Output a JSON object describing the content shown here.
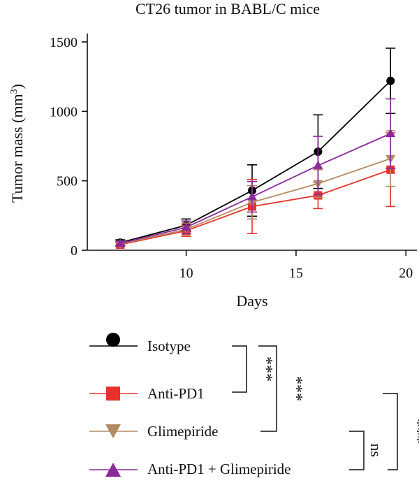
{
  "chart_data": {
    "type": "line",
    "title": "CT26 tumor in BABL/C mice",
    "xlabel": "Days",
    "ylabel": "Tumor mass (mm",
    "ylabel_sup": "3",
    "ylabel_close": ")",
    "xlim": [
      5.5,
      20.5
    ],
    "ylim": [
      0,
      1500
    ],
    "xticks": [
      10,
      15,
      20
    ],
    "yticks": [
      0,
      500,
      1000,
      1500
    ],
    "grid": false,
    "legend_position": "bottom",
    "series": [
      {
        "name": "Isotype",
        "color": "#000000",
        "marker": "circle",
        "x": [
          7,
          10,
          13,
          16,
          19.3
        ],
        "y": [
          55,
          180,
          430,
          710,
          1220
        ],
        "err": [
          20,
          45,
          185,
          265,
          235
        ]
      },
      {
        "name": "Anti-PD1",
        "color": "#e8322b",
        "marker": "square",
        "x": [
          7,
          10,
          13,
          16,
          19.3
        ],
        "y": [
          40,
          140,
          315,
          395,
          580
        ],
        "err": [
          15,
          40,
          195,
          95,
          265
        ]
      },
      {
        "name": "Glimepiride",
        "color": "#b48a63",
        "marker": "triangle-down",
        "x": [
          7,
          10,
          13,
          16,
          19.3
        ],
        "y": [
          45,
          150,
          345,
          480,
          660
        ],
        "err": [
          15,
          45,
          120,
          100,
          200
        ]
      },
      {
        "name": "Anti-PD1 + Glimepiride",
        "color": "#8b2a9c",
        "marker": "triangle-up",
        "x": [
          7,
          10,
          13,
          16,
          19.3
        ],
        "y": [
          50,
          165,
          385,
          610,
          840
        ],
        "err": [
          15,
          45,
          110,
          210,
          250
        ]
      }
    ],
    "significance": [
      {
        "label": "***",
        "between": [
          "Isotype",
          "Anti-PD1"
        ]
      },
      {
        "label": "***",
        "between": [
          "Isotype",
          "Glimepiride"
        ]
      },
      {
        "label": "ns",
        "between": [
          "Glimepiride",
          "Anti-PD1 + Glimepiride"
        ]
      },
      {
        "label": "***",
        "between": [
          "Anti-PD1",
          "Anti-PD1 + Glimepiride"
        ]
      }
    ]
  }
}
